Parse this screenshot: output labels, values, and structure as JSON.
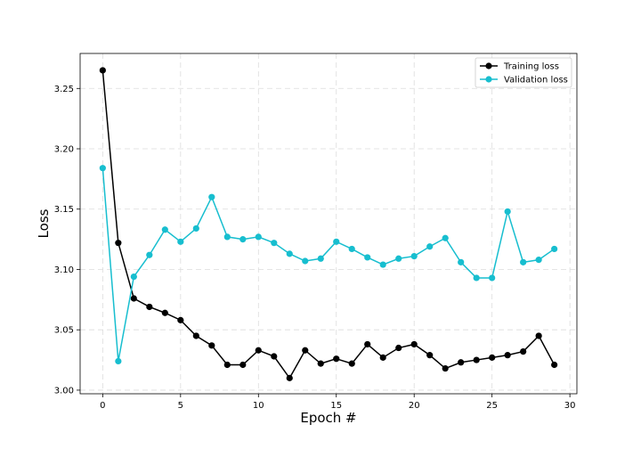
{
  "chart_data": {
    "type": "line",
    "xlabel": "Epoch #",
    "ylabel": "Loss",
    "xlim": [
      -1.45,
      30.45
    ],
    "ylim": [
      2.997,
      3.279
    ],
    "xticks": [
      0,
      5,
      10,
      15,
      20,
      25,
      30
    ],
    "yticks": [
      3.0,
      3.05,
      3.1,
      3.15,
      3.2,
      3.25
    ],
    "ytick_labels": [
      "3.00",
      "3.05",
      "3.10",
      "3.15",
      "3.20",
      "3.25"
    ],
    "grid": true,
    "legend_position": "top-right",
    "x": [
      0,
      1,
      2,
      3,
      4,
      5,
      6,
      7,
      8,
      9,
      10,
      11,
      12,
      13,
      14,
      15,
      16,
      17,
      18,
      19,
      20,
      21,
      22,
      23,
      24,
      25,
      26,
      27,
      28,
      29
    ],
    "series": [
      {
        "name": "Training loss",
        "color": "#000000",
        "values": [
          3.265,
          3.122,
          3.076,
          3.069,
          3.064,
          3.058,
          3.045,
          3.037,
          3.021,
          3.021,
          3.033,
          3.028,
          3.01,
          3.033,
          3.022,
          3.026,
          3.022,
          3.038,
          3.027,
          3.035,
          3.038,
          3.029,
          3.018,
          3.023,
          3.025,
          3.027,
          3.029,
          3.032,
          3.045,
          3.021
        ]
      },
      {
        "name": "Validation loss",
        "color": "#17becf",
        "values": [
          3.184,
          3.024,
          3.094,
          3.112,
          3.133,
          3.123,
          3.134,
          3.16,
          3.127,
          3.125,
          3.127,
          3.122,
          3.113,
          3.107,
          3.109,
          3.123,
          3.117,
          3.11,
          3.104,
          3.109,
          3.111,
          3.119,
          3.126,
          3.106,
          3.093,
          3.093,
          3.148,
          3.106,
          3.108,
          3.117
        ]
      }
    ]
  }
}
